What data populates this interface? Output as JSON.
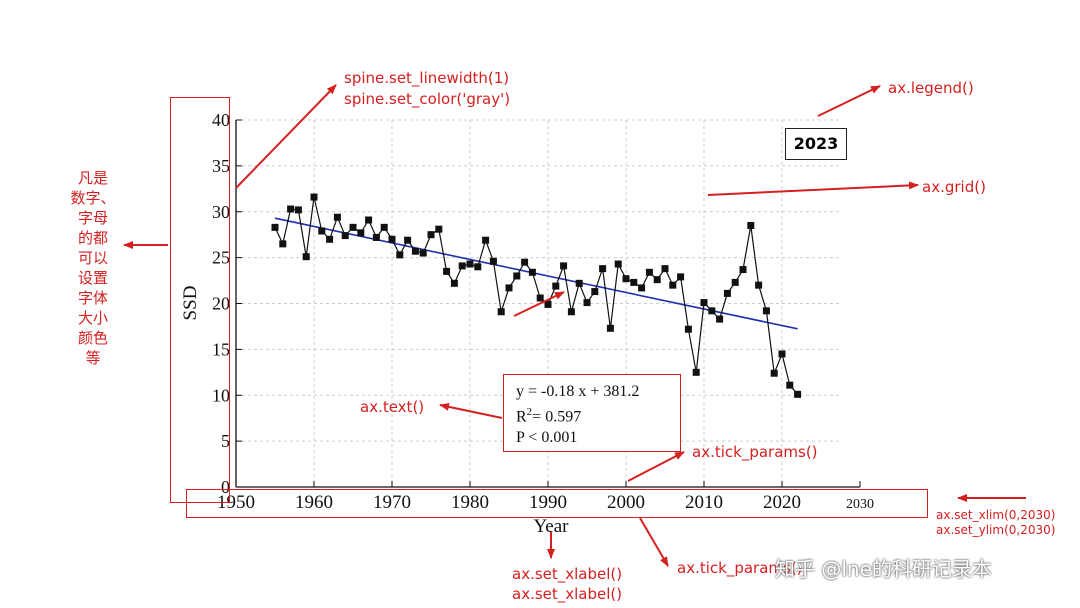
{
  "chart_data": {
    "type": "line",
    "xlabel": "Year",
    "ylabel": "SSD",
    "xlim": [
      1950,
      2030
    ],
    "ylim": [
      0,
      40
    ],
    "x_ticks": [
      1950,
      1960,
      1970,
      1980,
      1990,
      2000,
      2010,
      2020,
      2030
    ],
    "y_ticks": [
      0,
      5,
      10,
      15,
      20,
      25,
      30,
      35,
      40
    ],
    "grid": true,
    "legend": {
      "label": "2023",
      "placement": "top-right"
    },
    "series": [
      {
        "name": "",
        "x": [
          1955,
          1956,
          1957,
          1958,
          1959,
          1960,
          1961,
          1962,
          1963,
          1964,
          1965,
          1966,
          1967,
          1968,
          1969,
          1970,
          1971,
          1972,
          1973,
          1974,
          1975,
          1976,
          1977,
          1978,
          1979,
          1980,
          1981,
          1982,
          1983,
          1984,
          1985,
          1986,
          1987,
          1988,
          1989,
          1990,
          1991,
          1992,
          1993,
          1994,
          1995,
          1996,
          1997,
          1998,
          1999,
          2000,
          2001,
          2002,
          2003,
          2004,
          2005,
          2006,
          2007,
          2008,
          2009,
          2010,
          2011,
          2012,
          2013,
          2014,
          2015,
          2016,
          2017,
          2018,
          2019,
          2020,
          2021,
          2022
        ],
        "y": [
          28.3,
          26.5,
          30.3,
          30.2,
          25.1,
          31.6,
          27.9,
          27.0,
          29.4,
          27.4,
          28.3,
          27.7,
          29.1,
          27.2,
          28.3,
          27.0,
          25.3,
          26.9,
          25.7,
          25.5,
          27.5,
          28.1,
          23.5,
          22.2,
          24.1,
          24.3,
          24.0,
          26.9,
          24.6,
          19.1,
          21.7,
          23.0,
          24.5,
          23.4,
          20.6,
          19.9,
          21.9,
          24.1,
          19.1,
          22.2,
          20.1,
          21.3,
          23.8,
          17.3,
          24.3,
          22.7,
          22.3,
          21.7,
          23.4,
          22.6,
          23.8,
          22.0,
          22.9,
          17.2,
          12.5,
          20.1,
          19.2,
          18.3,
          21.1,
          22.3,
          23.7,
          28.5,
          22.0,
          19.2,
          12.4,
          14.5,
          11.1,
          10.1
        ]
      }
    ],
    "trendline": {
      "x": [
        1955,
        2022
      ],
      "equation": "y = -0.18 x + 381.2",
      "slope": -0.18,
      "intercept": 381.2
    },
    "annotation_text": {
      "line1": "y = -0.18 x + 381.2",
      "r_label": "R",
      "r_exp": "2",
      "r_value": "= 0.597",
      "line3": "P < 0.001"
    }
  },
  "annotations": {
    "spine_1": "spine.set_linewidth(1)",
    "spine_2": "spine.set_color('gray')",
    "legend": "ax.legend()",
    "grid": "ax.grid()",
    "text": "ax.text()",
    "tick_params_1": "ax.tick_params()",
    "tick_params_2": "ax.tick_params()",
    "xlabel_1": "ax.set_xlabel()",
    "xlabel_2": "ax.set_xlabel()",
    "xlim": "ax.set_xlim(0,2030)",
    "ylim": "ax.set_ylim(0,2030)",
    "chinese_note": "凡是\n数字、\n字母\n的都\n可以\n设置\n字体\n大小\n颜色\n等"
  },
  "watermark": "知乎 @lne的科研记录本",
  "colors": {
    "annotation_red": "#d42020",
    "trend_blue": "#1f2fb0",
    "grid_gray": "#cccccc"
  }
}
